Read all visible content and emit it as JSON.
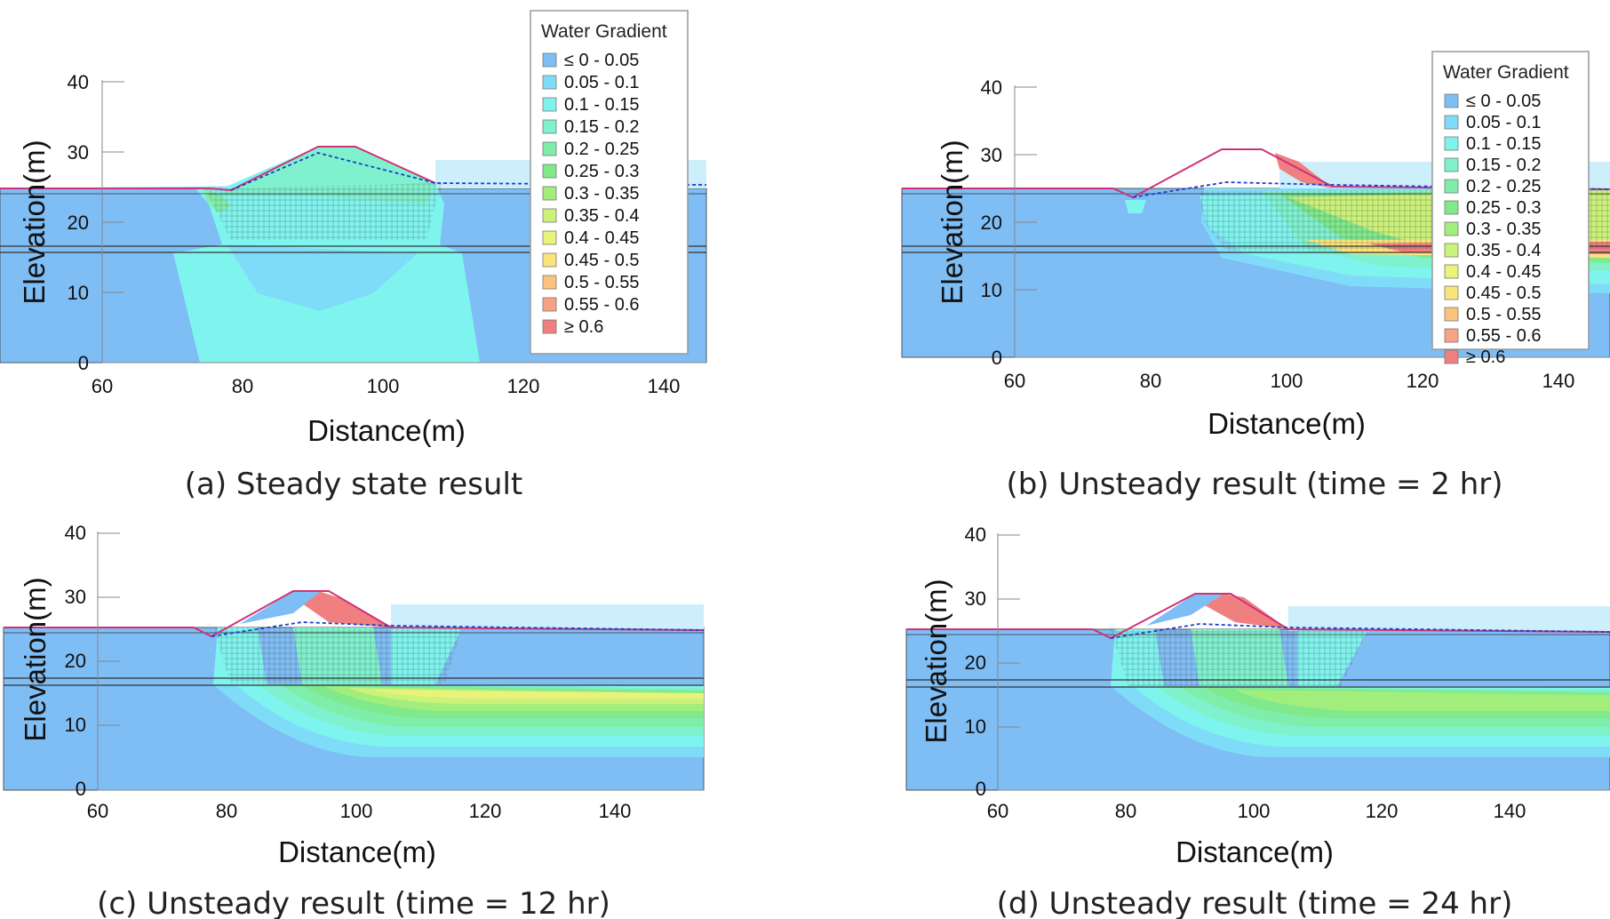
{
  "legend": {
    "title": "Water Gradient",
    "items": [
      {
        "label": "≤ 0 - 0.05",
        "color": "#7fbdf5"
      },
      {
        "label": "0.05 - 0.1",
        "color": "#7fdcf8"
      },
      {
        "label": "0.1 - 0.15",
        "color": "#7ff4ee"
      },
      {
        "label": "0.15 - 0.2",
        "color": "#7ff2cd"
      },
      {
        "label": "0.2 - 0.25",
        "color": "#7feeab"
      },
      {
        "label": "0.25 - 0.3",
        "color": "#7fe98b"
      },
      {
        "label": "0.3 - 0.35",
        "color": "#a2ee7c"
      },
      {
        "label": "0.35 - 0.4",
        "color": "#cbf279"
      },
      {
        "label": "0.4 - 0.45",
        "color": "#e9f27a"
      },
      {
        "label": "0.45 - 0.5",
        "color": "#fbe47c"
      },
      {
        "label": "0.5 - 0.55",
        "color": "#fbc47c"
      },
      {
        "label": "0.55 - 0.6",
        "color": "#f7a284"
      },
      {
        "label": "≥ 0.6",
        "color": "#f07f80"
      }
    ]
  },
  "axes": {
    "xlabel": "Distance(m)",
    "ylabel": "Elevation(m)",
    "xticks": [
      "60",
      "80",
      "100",
      "120",
      "140"
    ],
    "yticks": [
      "0",
      "10",
      "20",
      "30",
      "40"
    ]
  },
  "panels": [
    {
      "id": "a",
      "caption": "(a) Steady state result"
    },
    {
      "id": "b",
      "caption": "(b) Unsteady result (time = 2 hr)"
    },
    {
      "id": "c",
      "caption": "(c) Unsteady result (time = 12 hr)"
    },
    {
      "id": "d",
      "caption": "(d) Unsteady result (time = 24 hr)"
    }
  ],
  "colors": {
    "background_gradient": "#7fbdf5",
    "reservoir": "#cdeefb",
    "mesh_line": "#3a3a3a",
    "phreatic_line": "#1a3fd0",
    "ground_line": "#d0327a"
  }
}
